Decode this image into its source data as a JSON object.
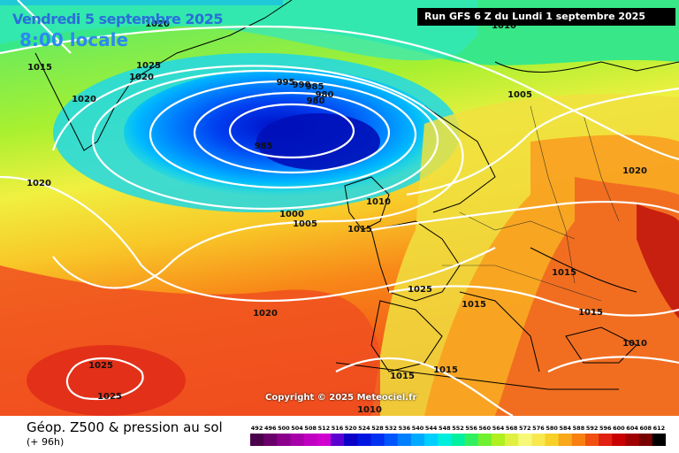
{
  "header": {
    "date_label": "Vendredi 5 septembre 2025",
    "time_label": "8:00 locale",
    "run_label": "Run GFS 6 Z du Lundi 1 septembre 2025"
  },
  "footer": {
    "title": "Géop. Z500 & pression au sol",
    "subtitle": "(+ 96h)",
    "copyright": "Copyright © 2025 Meteociel.fr"
  },
  "colorscale": {
    "labels": [
      "492",
      "496",
      "500",
      "504",
      "508",
      "512",
      "516",
      "520",
      "524",
      "528",
      "532",
      "536",
      "540",
      "544",
      "548",
      "552",
      "556",
      "560",
      "564",
      "568",
      "572",
      "576",
      "580",
      "584",
      "588",
      "592",
      "596",
      "600",
      "604",
      "608",
      "612"
    ],
    "colors": [
      "#4b004b",
      "#6a006a",
      "#8a008a",
      "#a800a8",
      "#c000c0",
      "#d000d0",
      "#5a00d0",
      "#0a00c8",
      "#0015e0",
      "#0030f0",
      "#0055ff",
      "#0080ff",
      "#00aaff",
      "#00cfff",
      "#00eedd",
      "#00f0a0",
      "#30f060",
      "#70f030",
      "#b0f020",
      "#e0f040",
      "#f8f878",
      "#f8e850",
      "#f8d028",
      "#f8a818",
      "#f88010",
      "#f05010",
      "#e02010",
      "#c80000",
      "#a00000",
      "#780000",
      "#000000"
    ]
  },
  "isobar_labels": [
    {
      "text": "1025"
    },
    {
      "text": "1020"
    },
    {
      "text": "1015"
    },
    {
      "text": "1020"
    },
    {
      "text": "1020"
    },
    {
      "text": "995"
    },
    {
      "text": "990"
    },
    {
      "text": "985"
    },
    {
      "text": "980"
    },
    {
      "text": "980"
    },
    {
      "text": "985"
    },
    {
      "text": "1000"
    },
    {
      "text": "1005"
    },
    {
      "text": "1010"
    },
    {
      "text": "1015"
    },
    {
      "text": "1005"
    },
    {
      "text": "1020"
    },
    {
      "text": "1025"
    },
    {
      "text": "1015"
    },
    {
      "text": "1015"
    },
    {
      "text": "1015"
    },
    {
      "text": "1010"
    },
    {
      "text": "1020"
    },
    {
      "text": "1025"
    },
    {
      "text": "1025"
    },
    {
      "text": "1015"
    },
    {
      "text": "1015"
    },
    {
      "text": "1010"
    },
    {
      "text": "1020"
    },
    {
      "text": "1010"
    }
  ]
}
